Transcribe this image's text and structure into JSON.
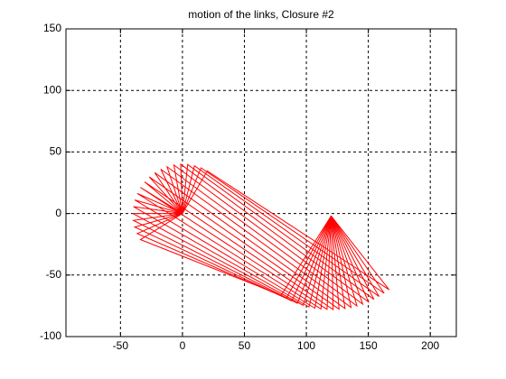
{
  "chart_data": {
    "type": "linkage",
    "title": "motion of the links, Closure #2",
    "color": "#ff0000",
    "grid": true,
    "xlim": [
      -94,
      221
    ],
    "ylim": [
      -100,
      150
    ],
    "xticks": [
      -50,
      0,
      50,
      100,
      150,
      200
    ],
    "yticks": [
      -100,
      -50,
      0,
      50,
      100,
      150
    ],
    "pivots": {
      "x": [
        0,
        120
      ],
      "y": [
        0,
        -2
      ]
    },
    "crank_end": {
      "x": [
        20.0,
        15.0,
        9.7,
        4.2,
        -1.4,
        -6.9,
        -12.4,
        -17.5,
        -22.4,
        -26.8,
        -30.6,
        -33.9,
        -36.5,
        -38.5,
        -39.6,
        -40.0,
        -39.6,
        -38.5,
        -36.5,
        -33.9
      ],
      "y": [
        34.6,
        37.1,
        38.8,
        39.8,
        40.0,
        39.4,
        38.0,
        36.0,
        33.2,
        29.7,
        25.7,
        21.2,
        16.3,
        11.0,
        5.6,
        0.0,
        -5.6,
        -11.0,
        -16.3,
        -21.2
      ]
    },
    "rocker_end": {
      "x": [
        166.8,
        162.8,
        158.7,
        154.5,
        150.1,
        145.5,
        140.8,
        136.1,
        131.2,
        126.4,
        121.6,
        116.7,
        111.8,
        106.9,
        102.1,
        97.4,
        92.8,
        88.2,
        83.9,
        79.7
      ],
      "y": [
        -61.9,
        -64.8,
        -67.4,
        -69.7,
        -71.8,
        -73.6,
        -75.1,
        -76.3,
        -77.2,
        -77.7,
        -78.0,
        -77.9,
        -77.6,
        -76.9,
        -75.9,
        -74.6,
        -73.0,
        -71.0,
        -68.8,
        -66.4
      ]
    }
  }
}
